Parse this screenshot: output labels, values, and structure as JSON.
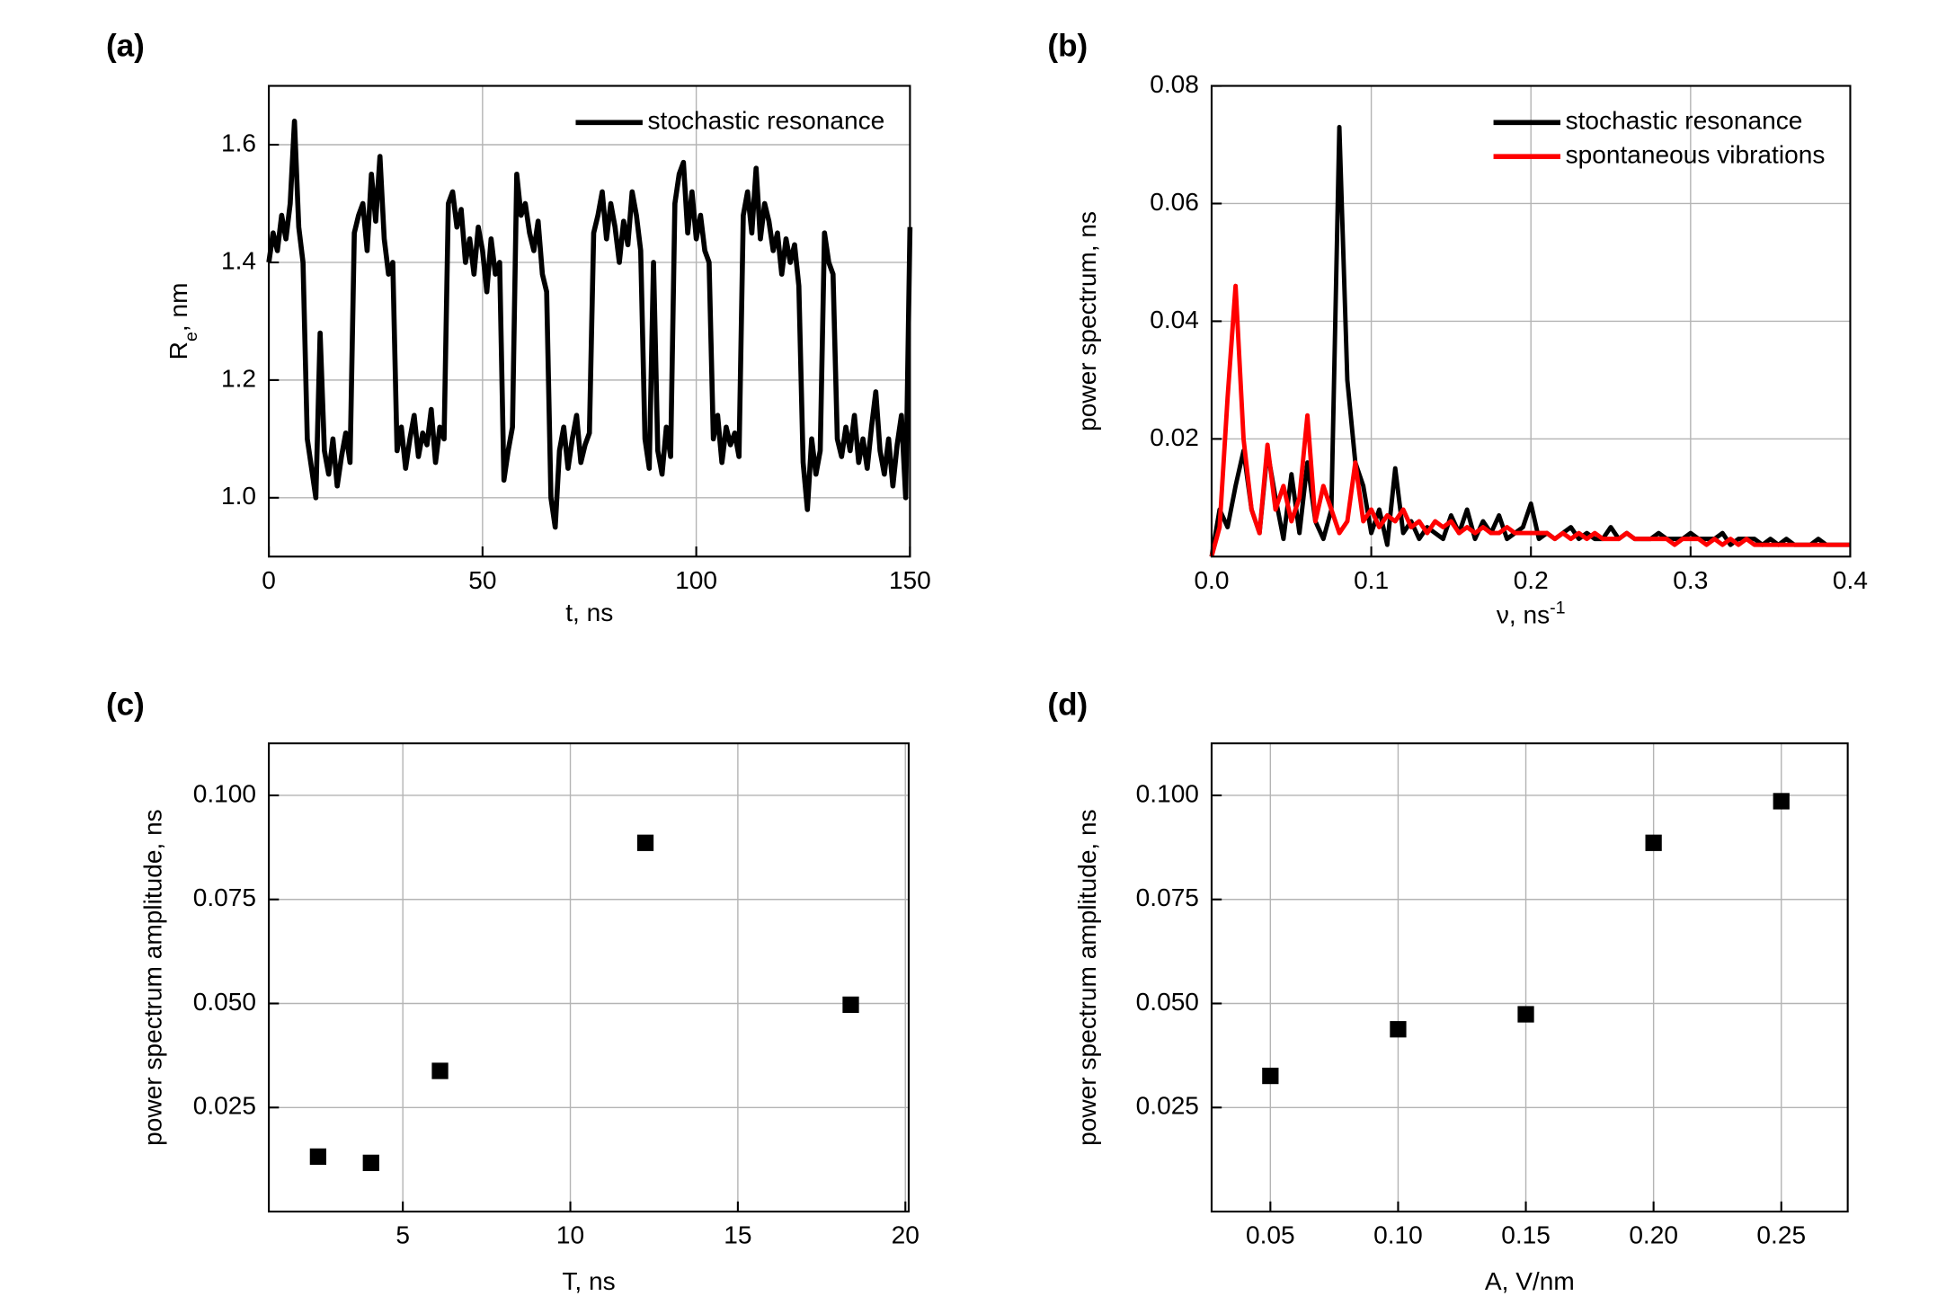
{
  "chart_data": [
    {
      "type": "line",
      "panel_label": "(a)",
      "x_label": "t, ns",
      "y_label": [
        "R",
        "e",
        ", nm"
      ],
      "xlim": [
        0,
        150
      ],
      "xticks": [
        0,
        50,
        100,
        150
      ],
      "ylim": [
        0.9,
        1.7
      ],
      "yticks": [
        {
          "value": 1,
          "label": "1.0"
        },
        1.2,
        1.4,
        1.6
      ],
      "grid": true,
      "legend": "upper right",
      "x": [
        0,
        1,
        2,
        3,
        4,
        5,
        6,
        7,
        8,
        9,
        10,
        11,
        12,
        13,
        14,
        15,
        16,
        17,
        18,
        19,
        20,
        21,
        22,
        23,
        24,
        25,
        26,
        27,
        28,
        29,
        30,
        31,
        32,
        33,
        34,
        35,
        36,
        37,
        38,
        39,
        40,
        41,
        42,
        43,
        44,
        45,
        46,
        47,
        48,
        49,
        50,
        51,
        52,
        53,
        54,
        55,
        56,
        57,
        58,
        59,
        60,
        61,
        62,
        63,
        64,
        65,
        66,
        67,
        68,
        69,
        70,
        71,
        72,
        73,
        74,
        75,
        76,
        77,
        78,
        79,
        80,
        81,
        82,
        83,
        84,
        85,
        86,
        87,
        88,
        89,
        90,
        91,
        92,
        93,
        94,
        95,
        96,
        97,
        98,
        99,
        100,
        101,
        102,
        103,
        104,
        105,
        106,
        107,
        108,
        109,
        110,
        111,
        112,
        113,
        114,
        115,
        116,
        117,
        118,
        119,
        120,
        121,
        122,
        123,
        124,
        125,
        126,
        127,
        128,
        129,
        130,
        131,
        132,
        133,
        134,
        135,
        136,
        137,
        138,
        139,
        140,
        141,
        142,
        143,
        144,
        145,
        146,
        147,
        148,
        149,
        150
      ],
      "series": [
        {
          "name": "stochastic resonance",
          "color": "#000000",
          "values": [
            1.4,
            1.45,
            1.42,
            1.48,
            1.44,
            1.5,
            1.64,
            1.46,
            1.4,
            1.1,
            1.05,
            1.0,
            1.28,
            1.08,
            1.04,
            1.1,
            1.02,
            1.07,
            1.11,
            1.06,
            1.45,
            1.48,
            1.5,
            1.42,
            1.55,
            1.47,
            1.58,
            1.44,
            1.38,
            1.4,
            1.08,
            1.12,
            1.05,
            1.1,
            1.14,
            1.07,
            1.11,
            1.09,
            1.15,
            1.06,
            1.12,
            1.1,
            1.5,
            1.52,
            1.46,
            1.49,
            1.4,
            1.44,
            1.38,
            1.46,
            1.42,
            1.35,
            1.44,
            1.38,
            1.4,
            1.03,
            1.08,
            1.12,
            1.55,
            1.48,
            1.5,
            1.45,
            1.42,
            1.47,
            1.38,
            1.35,
            1.0,
            0.95,
            1.08,
            1.12,
            1.05,
            1.1,
            1.14,
            1.06,
            1.09,
            1.11,
            1.45,
            1.48,
            1.52,
            1.44,
            1.5,
            1.46,
            1.4,
            1.47,
            1.43,
            1.52,
            1.48,
            1.42,
            1.1,
            1.05,
            1.4,
            1.08,
            1.04,
            1.12,
            1.07,
            1.5,
            1.55,
            1.57,
            1.45,
            1.52,
            1.44,
            1.48,
            1.42,
            1.4,
            1.1,
            1.14,
            1.06,
            1.12,
            1.09,
            1.11,
            1.07,
            1.48,
            1.52,
            1.45,
            1.56,
            1.44,
            1.5,
            1.47,
            1.42,
            1.45,
            1.38,
            1.44,
            1.4,
            1.43,
            1.36,
            1.06,
            0.98,
            1.1,
            1.04,
            1.08,
            1.45,
            1.4,
            1.38,
            1.1,
            1.07,
            1.12,
            1.08,
            1.14,
            1.06,
            1.1,
            1.05,
            1.12,
            1.18,
            1.08,
            1.04,
            1.1,
            1.02,
            1.09,
            1.14,
            1.0,
            1.46
          ]
        }
      ]
    },
    {
      "type": "line",
      "panel_label": "(b)",
      "x_label": [
        "ν, ns",
        "-1"
      ],
      "y_label": "power spectrum, ns",
      "xlim": [
        0,
        0.4
      ],
      "xticks": [
        {
          "value": 0,
          "label": "0.0"
        },
        0.1,
        0.2,
        0.3,
        0.4
      ],
      "ylim": [
        0,
        0.08
      ],
      "yticks": [
        0.02,
        0.04,
        0.06,
        0.08
      ],
      "grid": true,
      "legend": "upper right",
      "x": [
        0,
        0.005,
        0.01,
        0.015,
        0.02,
        0.025,
        0.03,
        0.035,
        0.04,
        0.045,
        0.05,
        0.055,
        0.06,
        0.065,
        0.07,
        0.075,
        0.08,
        0.085,
        0.09,
        0.095,
        0.1,
        0.105,
        0.11,
        0.115,
        0.12,
        0.125,
        0.13,
        0.135,
        0.14,
        0.145,
        0.15,
        0.155,
        0.16,
        0.165,
        0.17,
        0.175,
        0.18,
        0.185,
        0.19,
        0.195,
        0.2,
        0.205,
        0.21,
        0.215,
        0.22,
        0.225,
        0.23,
        0.235,
        0.24,
        0.245,
        0.25,
        0.255,
        0.26,
        0.265,
        0.27,
        0.275,
        0.28,
        0.285,
        0.29,
        0.295,
        0.3,
        0.305,
        0.31,
        0.315,
        0.32,
        0.325,
        0.33,
        0.335,
        0.34,
        0.345,
        0.35,
        0.355,
        0.36,
        0.365,
        0.37,
        0.375,
        0.38,
        0.385,
        0.39,
        0.395,
        0.4
      ],
      "series": [
        {
          "name": "stochastic resonance",
          "color": "#000000",
          "values": [
            0,
            0.008,
            0.005,
            0.012,
            0.018,
            0.008,
            0.004,
            0.018,
            0.01,
            0.003,
            0.014,
            0.004,
            0.016,
            0.006,
            0.003,
            0.008,
            0.073,
            0.03,
            0.016,
            0.012,
            0.004,
            0.008,
            0.002,
            0.015,
            0.004,
            0.006,
            0.003,
            0.005,
            0.004,
            0.003,
            0.007,
            0.004,
            0.008,
            0.003,
            0.006,
            0.004,
            0.007,
            0.003,
            0.004,
            0.005,
            0.009,
            0.003,
            0.004,
            0.003,
            0.004,
            0.005,
            0.003,
            0.004,
            0.003,
            0.003,
            0.005,
            0.003,
            0.004,
            0.003,
            0.003,
            0.003,
            0.004,
            0.003,
            0.003,
            0.003,
            0.004,
            0.003,
            0.003,
            0.003,
            0.004,
            0.002,
            0.003,
            0.003,
            0.003,
            0.002,
            0.003,
            0.002,
            0.003,
            0.002,
            0.002,
            0.002,
            0.003,
            0.002,
            0.002,
            0.002,
            0.002
          ]
        },
        {
          "name": "spontaneous vibrations",
          "color": "#ff0000",
          "values": [
            0,
            0.005,
            0.027,
            0.046,
            0.02,
            0.008,
            0.004,
            0.019,
            0.008,
            0.012,
            0.006,
            0.01,
            0.024,
            0.006,
            0.012,
            0.008,
            0.004,
            0.006,
            0.016,
            0.006,
            0.008,
            0.005,
            0.007,
            0.006,
            0.008,
            0.005,
            0.006,
            0.004,
            0.006,
            0.005,
            0.006,
            0.004,
            0.005,
            0.004,
            0.005,
            0.004,
            0.004,
            0.005,
            0.004,
            0.004,
            0.004,
            0.004,
            0.004,
            0.003,
            0.004,
            0.003,
            0.004,
            0.003,
            0.004,
            0.003,
            0.003,
            0.003,
            0.004,
            0.003,
            0.003,
            0.003,
            0.003,
            0.003,
            0.002,
            0.003,
            0.003,
            0.003,
            0.002,
            0.003,
            0.002,
            0.003,
            0.002,
            0.003,
            0.002,
            0.002,
            0.002,
            0.002,
            0.002,
            0.002,
            0.002,
            0.002,
            0.002,
            0.002,
            0.002,
            0.002,
            0.002
          ]
        }
      ]
    },
    {
      "type": "scatter",
      "panel_label": "(c)",
      "x_label": "T, ns",
      "y_label": "power spectrum amplitude, ns",
      "xlim": [
        1,
        20.1
      ],
      "xticks": [
        5,
        10,
        15,
        20
      ],
      "ylim": [
        0,
        0.1125
      ],
      "yticks": [
        0.025,
        {
          "value": 0.05,
          "label": "0.050"
        },
        0.075,
        {
          "value": 0.1,
          "label": "0.100"
        }
      ],
      "grid": true,
      "color": "#000000",
      "x": [
        2.47,
        4.05,
        6.11,
        12.24,
        18.37
      ],
      "values": [
        0.0132,
        0.0117,
        0.0338,
        0.0886,
        0.0497
      ]
    },
    {
      "type": "scatter",
      "panel_label": "(d)",
      "x_label": "A, V/nm",
      "y_label": "power spectrum amplitude, ns",
      "xlim": [
        0.027,
        0.276
      ],
      "xticks": [
        0.05,
        {
          "value": 0.1,
          "label": "0.10"
        },
        0.15,
        {
          "value": 0.2,
          "label": "0.20"
        },
        0.25
      ],
      "ylim": [
        0,
        0.1125
      ],
      "yticks": [
        0.025,
        {
          "value": 0.05,
          "label": "0.050"
        },
        0.075,
        {
          "value": 0.1,
          "label": "0.100"
        }
      ],
      "grid": true,
      "color": "#000000",
      "x": [
        0.05,
        0.1,
        0.15,
        0.2,
        0.25
      ],
      "values": [
        0.0326,
        0.0438,
        0.0474,
        0.0886,
        0.0986
      ]
    }
  ]
}
